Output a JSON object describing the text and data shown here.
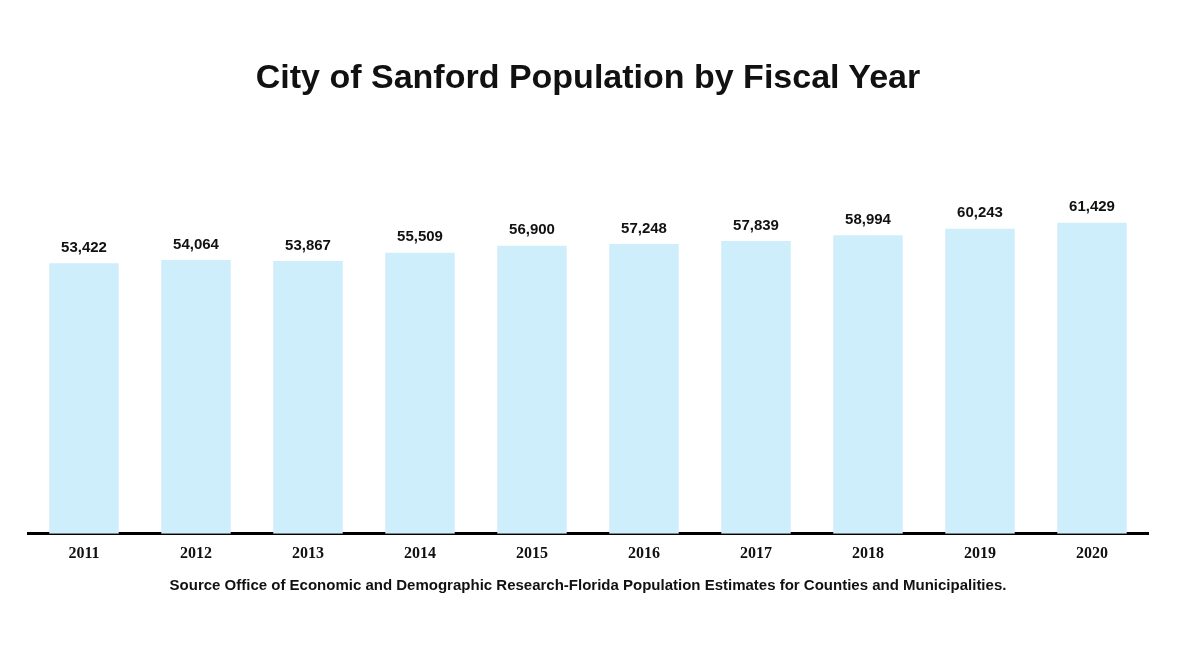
{
  "chart_data": {
    "type": "bar",
    "title": "City of Sanford Population by Fiscal Year",
    "categories": [
      "2011",
      "2012",
      "2013",
      "2014",
      "2015",
      "2016",
      "2017",
      "2018",
      "2019",
      "2020"
    ],
    "values": [
      53422,
      54064,
      53867,
      55509,
      56900,
      57248,
      57839,
      58994,
      60243,
      61429
    ],
    "color": "#cdeefa",
    "value_labels": [
      "53,422",
      "54,064",
      "53,867",
      "55,509",
      "56,900",
      "57,248",
      "57,839",
      "58,994",
      "60,243",
      "61,429"
    ],
    "grid": false,
    "legend": false,
    "annotations": [
      "Source Office of Economic and Demographic Research-Florida Population Estimates for Counties and Municipalities."
    ]
  }
}
